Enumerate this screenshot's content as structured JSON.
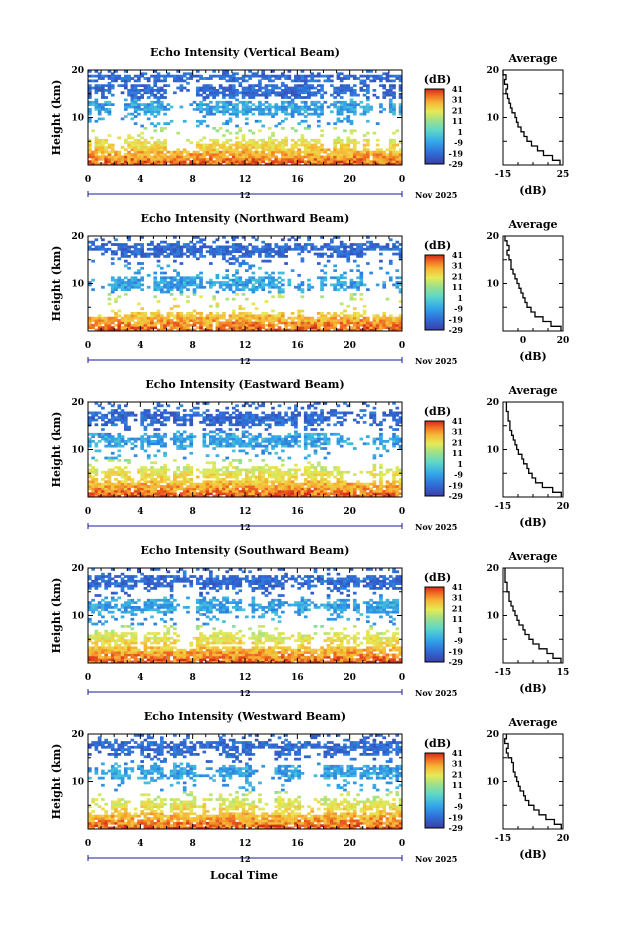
{
  "figure": {
    "xlabel": "Local Time",
    "month_label": "Nov 2025",
    "hour_marker": "12",
    "colorbar_unit": "(dB)",
    "colorbar_ticks": [
      "41",
      "31",
      "21",
      "11",
      "1",
      "-9",
      "-19",
      "-29"
    ],
    "colors": {
      "white": "#ffffff",
      "axis": "#000000"
    }
  },
  "chart_data": [
    {
      "type": "heatmap",
      "title": "Echo Intensity (Vertical Beam)",
      "ylabel": "Height (km)",
      "xlim": [
        0,
        24
      ],
      "ylim": [
        0,
        20
      ],
      "xticks": [
        "0",
        "4",
        "8",
        "12",
        "16",
        "20",
        "0"
      ],
      "yticks": [
        "10",
        "20"
      ],
      "colorbar_range": [
        -29,
        41
      ],
      "profile": {
        "title": "Average",
        "xlabel": "(dB)",
        "xlim": [
          -15,
          25
        ],
        "xticks": [
          "-15",
          "25"
        ],
        "yticks": [
          "10",
          "20"
        ],
        "height_km": [
          1,
          2,
          3,
          4,
          5,
          6,
          7,
          8,
          9,
          10,
          11,
          12,
          13,
          14,
          15,
          16,
          17,
          18,
          19,
          20
        ],
        "values_db": [
          23,
          18,
          12,
          8,
          4,
          1,
          -1,
          -3,
          -5,
          -6,
          -7,
          -9,
          -10,
          -11,
          -12,
          -13,
          -12,
          -14,
          -13,
          -15
        ]
      },
      "echo_layers_km": [
        0.7,
        4.0,
        12,
        15.5,
        19
      ]
    },
    {
      "type": "heatmap",
      "title": "Echo Intensity (Northward Beam)",
      "ylabel": "Height (km)",
      "xlim": [
        0,
        24
      ],
      "ylim": [
        0,
        20
      ],
      "xticks": [
        "0",
        "4",
        "8",
        "12",
        "16",
        "20",
        "0"
      ],
      "yticks": [
        "10",
        "20"
      ],
      "colorbar_range": [
        -29,
        41
      ],
      "profile": {
        "title": "Average",
        "xlabel": "(dB)",
        "xlim": [
          -10,
          20
        ],
        "xticks": [
          "0",
          "20"
        ],
        "yticks": [
          "10",
          "20"
        ],
        "height_km": [
          1,
          2,
          3,
          4,
          5,
          6,
          7,
          8,
          9,
          10,
          11,
          12,
          13,
          14,
          15,
          16,
          17,
          18,
          19,
          20
        ],
        "values_db": [
          19,
          14,
          10,
          6,
          4,
          2,
          1,
          0,
          -1,
          -2,
          -3,
          -4,
          -5,
          -6,
          -6,
          -7,
          -8,
          -7,
          -8,
          -9
        ]
      },
      "echo_layers_km": [
        1.0,
        10,
        17
      ]
    },
    {
      "type": "heatmap",
      "title": "Echo Intensity (Eastward Beam)",
      "ylabel": "Height (km)",
      "xlim": [
        0,
        24
      ],
      "ylim": [
        0,
        20
      ],
      "xticks": [
        "0",
        "4",
        "8",
        "12",
        "16",
        "20",
        "0"
      ],
      "yticks": [
        "10",
        "20"
      ],
      "colorbar_range": [
        -29,
        41
      ],
      "profile": {
        "title": "Average",
        "xlabel": "(dB)",
        "xlim": [
          -15,
          20
        ],
        "xticks": [
          "-15",
          "20"
        ],
        "yticks": [
          "10",
          "20"
        ],
        "height_km": [
          1,
          2,
          3,
          4,
          5,
          6,
          7,
          8,
          9,
          10,
          11,
          12,
          13,
          14,
          15,
          16,
          17,
          18,
          19,
          20
        ],
        "values_db": [
          19,
          14,
          8,
          4,
          2,
          0,
          -1,
          -3,
          -4,
          -6,
          -7,
          -8,
          -9,
          -10,
          -11,
          -11,
          -12,
          -12,
          -13,
          -13
        ]
      },
      "echo_layers_km": [
        1.0,
        5.0,
        12,
        16.5
      ]
    },
    {
      "type": "heatmap",
      "title": "Echo Intensity (Southward Beam)",
      "ylabel": "Height (km)",
      "xlim": [
        0,
        24
      ],
      "ylim": [
        0,
        20
      ],
      "xticks": [
        "0",
        "4",
        "8",
        "12",
        "16",
        "20",
        "0"
      ],
      "yticks": [
        "10",
        "20"
      ],
      "colorbar_range": [
        -29,
        41
      ],
      "profile": {
        "title": "Average",
        "xlabel": "(dB)",
        "xlim": [
          -15,
          15
        ],
        "xticks": [
          "-15",
          "15"
        ],
        "yticks": [
          "10",
          "20"
        ],
        "height_km": [
          1,
          2,
          3,
          4,
          5,
          6,
          7,
          8,
          9,
          10,
          11,
          12,
          13,
          14,
          15,
          16,
          17,
          18,
          19,
          20
        ],
        "values_db": [
          14,
          10,
          7,
          3,
          0,
          -2,
          -4,
          -5,
          -7,
          -8,
          -9,
          -10,
          -11,
          -12,
          -12,
          -13,
          -13,
          -14,
          -14,
          -14
        ]
      },
      "echo_layers_km": [
        1.0,
        5.0,
        12,
        17
      ]
    },
    {
      "type": "heatmap",
      "title": "Echo Intensity (Westward Beam)",
      "ylabel": "Height (km)",
      "xlim": [
        0,
        24
      ],
      "ylim": [
        0,
        20
      ],
      "xticks": [
        "0",
        "4",
        "8",
        "12",
        "16",
        "20",
        "0"
      ],
      "yticks": [
        "10",
        "20"
      ],
      "colorbar_range": [
        -29,
        41
      ],
      "profile": {
        "title": "Average",
        "xlabel": "(dB)",
        "xlim": [
          -15,
          20
        ],
        "xticks": [
          "-15",
          "20"
        ],
        "yticks": [
          "10",
          "20"
        ],
        "height_km": [
          1,
          2,
          3,
          4,
          5,
          6,
          7,
          8,
          9,
          10,
          11,
          12,
          13,
          14,
          15,
          16,
          17,
          18,
          19,
          20
        ],
        "values_db": [
          19,
          15,
          10,
          6,
          3,
          0,
          -2,
          -3,
          -5,
          -6,
          -7,
          -8,
          -9,
          -9,
          -10,
          -12,
          -13,
          -12,
          -14,
          -13
        ]
      },
      "echo_layers_km": [
        1.0,
        5.0,
        12,
        17
      ]
    }
  ]
}
